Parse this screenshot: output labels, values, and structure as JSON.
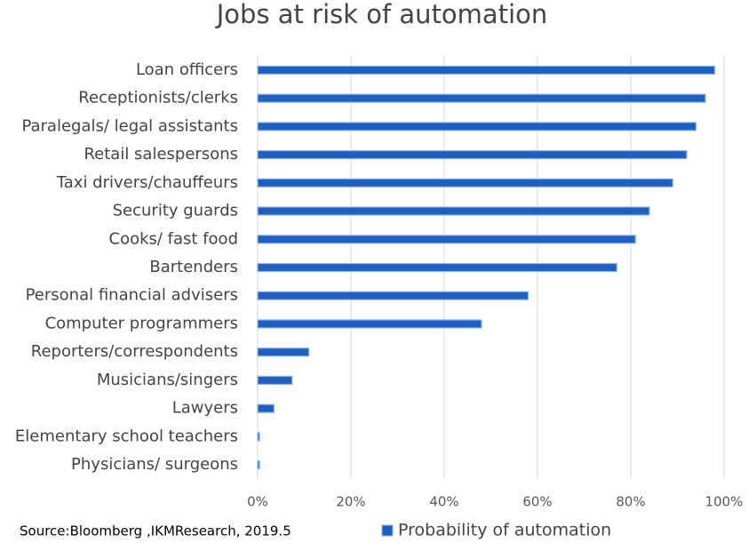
{
  "chart_data": {
    "type": "bar",
    "orientation": "horizontal",
    "title": "Jobs at risk of automation",
    "categories": [
      "Loan officers",
      "Receptionists/clerks",
      "Paralegals/ legal assistants",
      "Retail salespersons",
      "Taxi drivers/chauffeurs",
      "Security guards",
      "Cooks/ fast food",
      "Bartenders",
      "Personal financial advisers",
      "Computer programmers",
      "Reporters/correspondents",
      "Musicians/singers",
      "Lawyers",
      "Elementary school teachers",
      "Physicians/ surgeons"
    ],
    "series": [
      {
        "name": "Probability of automation",
        "color": "#1f5fc4",
        "values": [
          98,
          96,
          94,
          92,
          89,
          84,
          81,
          77,
          58,
          48,
          11,
          7.4,
          3.5,
          0.4,
          0.4
        ]
      }
    ],
    "xlim": [
      0,
      100
    ],
    "xticks": [
      {
        "value": 0,
        "label": "0%"
      },
      {
        "value": 20,
        "label": "20%"
      },
      {
        "value": 40,
        "label": "40%"
      },
      {
        "value": 60,
        "label": "60%"
      },
      {
        "value": 80,
        "label": "80%"
      },
      {
        "value": 100,
        "label": "100%"
      }
    ],
    "grid": true,
    "legend": "bottom",
    "source": "Source:Bloomberg ,IKMResearch, 2019.5"
  }
}
